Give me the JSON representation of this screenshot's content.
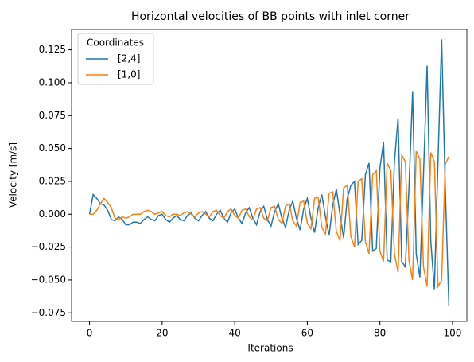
{
  "chart_data": {
    "type": "line",
    "title": "Horizontal velocities of BB points with inlet corner",
    "xlabel": "Iterations",
    "ylabel": "Velocity [m/s]",
    "legend_title": "Coordinates",
    "legend": "upper left",
    "grid": false,
    "x": [
      0,
      1,
      2,
      3,
      4,
      5,
      6,
      7,
      8,
      9,
      10,
      11,
      12,
      13,
      14,
      15,
      16,
      17,
      18,
      19,
      20,
      21,
      22,
      23,
      24,
      25,
      26,
      27,
      28,
      29,
      30,
      31,
      32,
      33,
      34,
      35,
      36,
      37,
      38,
      39,
      40,
      41,
      42,
      43,
      44,
      45,
      46,
      47,
      48,
      49,
      50,
      51,
      52,
      53,
      54,
      55,
      56,
      57,
      58,
      59,
      60,
      61,
      62,
      63,
      64,
      65,
      66,
      67,
      68,
      69,
      70,
      71,
      72,
      73,
      74,
      75,
      76,
      77,
      78,
      79,
      80,
      81,
      82,
      83,
      84,
      85,
      86,
      87,
      88,
      89,
      90,
      91,
      92,
      93,
      94,
      95,
      96,
      97,
      98,
      99
    ],
    "series": [
      {
        "name": "[2,4]",
        "color": "#1f77b4",
        "values": [
          0,
          0.015,
          0.012,
          0.008,
          0.007,
          0.003,
          -0.004,
          -0.005,
          -0.002,
          -0.004,
          -0.008,
          -0.008,
          -0.006,
          -0.006,
          -0.007,
          -0.004,
          -0.002,
          -0.004,
          -0.005,
          -0.001,
          0.0,
          -0.004,
          -0.006,
          -0.003,
          -0.001,
          -0.004,
          -0.005,
          -0.001,
          0.001,
          -0.003,
          -0.005,
          -0.001,
          0.002,
          -0.003,
          -0.005,
          0.0,
          0.003,
          -0.003,
          -0.006,
          0.001,
          0.004,
          -0.003,
          -0.007,
          0.001,
          0.005,
          -0.003,
          -0.008,
          0.002,
          0.006,
          -0.004,
          -0.009,
          0.002,
          0.008,
          -0.003,
          -0.01,
          0.003,
          0.01,
          -0.003,
          -0.012,
          0.004,
          0.012,
          -0.003,
          -0.014,
          0.005,
          0.015,
          -0.002,
          -0.016,
          0.007,
          0.019,
          0.0,
          -0.018,
          0.012,
          0.022,
          0.025,
          -0.023,
          -0.02,
          0.03,
          0.039,
          -0.028,
          -0.026,
          0.035,
          0.055,
          -0.035,
          -0.036,
          0.04,
          0.073,
          -0.036,
          -0.04,
          0.02,
          0.093,
          -0.03,
          -0.048,
          0.03,
          0.113,
          -0.02,
          -0.057,
          0.04,
          0.133,
          0.02,
          -0.07
        ]
      },
      {
        "name": "[1,0]",
        "color": "#ff7f0e",
        "values": [
          0,
          0.0,
          0.003,
          0.008,
          0.012,
          0.009,
          0.005,
          -0.003,
          -0.004,
          -0.002,
          -0.003,
          -0.002,
          0.0,
          0.0,
          0.0,
          0.002,
          0.003,
          0.002,
          0.0,
          0.001,
          0.002,
          -0.001,
          -0.002,
          0.0,
          0.0,
          -0.001,
          0.001,
          0.002,
          0.0,
          -0.002,
          0.001,
          0.002,
          0.0,
          -0.002,
          0.002,
          0.003,
          -0.001,
          -0.003,
          0.002,
          0.004,
          -0.001,
          -0.003,
          0.003,
          0.004,
          -0.002,
          -0.004,
          0.004,
          0.005,
          -0.003,
          -0.005,
          0.005,
          0.006,
          -0.004,
          -0.007,
          0.006,
          0.008,
          -0.005,
          -0.009,
          0.009,
          0.01,
          -0.007,
          -0.011,
          0.012,
          0.013,
          -0.01,
          -0.015,
          0.016,
          0.017,
          -0.013,
          -0.02,
          0.02,
          0.022,
          -0.017,
          -0.025,
          0.025,
          0.027,
          -0.021,
          -0.03,
          0.03,
          0.033,
          -0.028,
          -0.036,
          0.039,
          0.033,
          -0.03,
          -0.044,
          0.045,
          0.04,
          -0.035,
          -0.05,
          0.048,
          0.042,
          -0.04,
          -0.055,
          0.047,
          0.04,
          -0.055,
          -0.05,
          0.038,
          0.044
        ]
      }
    ],
    "xlim": [
      -4.95,
      103.95
    ],
    "ylim": [
      -0.0815,
      0.1405
    ],
    "xticks": [
      0,
      20,
      40,
      60,
      80,
      100
    ],
    "yticks": [
      {
        "value": -0.075,
        "label": "−0.075"
      },
      {
        "value": -0.05,
        "label": "−0.050"
      },
      {
        "value": -0.025,
        "label": "−0.025"
      },
      {
        "value": 0,
        "label": "0.000"
      },
      {
        "value": 0.025,
        "label": "0.025"
      },
      {
        "value": 0.05,
        "label": "0.050"
      },
      {
        "value": 0.075,
        "label": "0.075"
      },
      {
        "value": 0.1,
        "label": "0.100"
      },
      {
        "value": 0.125,
        "label": "0.125"
      }
    ]
  }
}
